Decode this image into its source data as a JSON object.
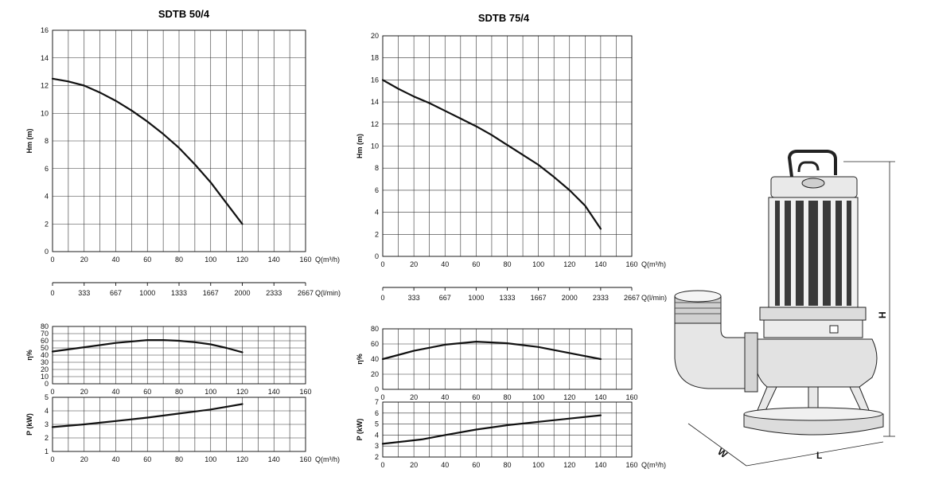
{
  "chart_data": [
    {
      "type": "line",
      "title": "SDTB 50/4",
      "panels": [
        {
          "id": "head",
          "ylabel": "Hm   (m)",
          "xlim": [
            0,
            160
          ],
          "ylim": [
            0,
            16
          ],
          "xticks": [
            0,
            20,
            40,
            60,
            80,
            100,
            120,
            140,
            160
          ],
          "yticks": [
            0,
            2,
            4,
            6,
            8,
            10,
            12,
            14,
            16
          ],
          "xunit": "Q(m³/h)",
          "secondary_xticks": [
            "0",
            "333",
            "667",
            "1000",
            "1333",
            "1667",
            "2000",
            "2333",
            "2667"
          ],
          "secondary_xunit": "Q(l/min)",
          "x": [
            0,
            10,
            20,
            30,
            40,
            50,
            60,
            70,
            80,
            90,
            100,
            110,
            120
          ],
          "y": [
            12.5,
            12.3,
            12.0,
            11.5,
            10.9,
            10.2,
            9.4,
            8.5,
            7.5,
            6.3,
            5.0,
            3.5,
            2.0
          ]
        },
        {
          "id": "efficiency",
          "ylabel": "η%",
          "xlim": [
            0,
            160
          ],
          "ylim": [
            0,
            80
          ],
          "xticks": [
            0,
            20,
            40,
            60,
            80,
            100,
            120,
            140,
            160
          ],
          "yticks": [
            0,
            10,
            20,
            30,
            40,
            50,
            60,
            70,
            80
          ],
          "x": [
            0,
            20,
            40,
            60,
            70,
            80,
            90,
            100,
            110,
            120
          ],
          "y": [
            45,
            51,
            57,
            61,
            61,
            60,
            58,
            55,
            50,
            44
          ]
        },
        {
          "id": "power",
          "ylabel": "P  (kW)",
          "xlim": [
            0,
            160
          ],
          "ylim": [
            1,
            5
          ],
          "xticks": [
            0,
            20,
            40,
            60,
            80,
            100,
            120,
            140,
            160
          ],
          "yticks": [
            1,
            2,
            3,
            4,
            5
          ],
          "xunit": "Q(m³/h)",
          "x": [
            0,
            20,
            40,
            60,
            80,
            100,
            120
          ],
          "y": [
            2.8,
            3.0,
            3.25,
            3.5,
            3.8,
            4.1,
            4.5
          ]
        }
      ]
    },
    {
      "type": "line",
      "title": "SDTB 75/4",
      "panels": [
        {
          "id": "head",
          "ylabel": "Hm   (m)",
          "xlim": [
            0,
            160
          ],
          "ylim": [
            0,
            20
          ],
          "xticks": [
            0,
            20,
            40,
            60,
            80,
            100,
            120,
            140,
            160
          ],
          "yticks": [
            0,
            2,
            4,
            6,
            8,
            10,
            12,
            14,
            16,
            18,
            20
          ],
          "xunit": "Q(m³/h)",
          "secondary_xticks": [
            "0",
            "333",
            "667",
            "1000",
            "1333",
            "1667",
            "2000",
            "2333",
            "2667"
          ],
          "secondary_xunit": "Q(l/min)",
          "x": [
            0,
            10,
            20,
            30,
            40,
            50,
            60,
            70,
            80,
            90,
            100,
            110,
            120,
            130,
            140
          ],
          "y": [
            16.0,
            15.2,
            14.5,
            13.9,
            13.2,
            12.5,
            11.8,
            11.0,
            10.1,
            9.2,
            8.3,
            7.2,
            6.0,
            4.6,
            2.5
          ]
        },
        {
          "id": "efficiency",
          "ylabel": "η%",
          "xlim": [
            0,
            160
          ],
          "ylim": [
            0,
            80
          ],
          "xticks": [
            0,
            20,
            40,
            60,
            80,
            100,
            120,
            140,
            160
          ],
          "yticks": [
            0,
            20,
            40,
            60,
            80
          ],
          "x": [
            0,
            20,
            40,
            60,
            80,
            100,
            120,
            140
          ],
          "y": [
            40,
            51,
            59,
            63,
            61,
            56,
            48,
            40
          ]
        },
        {
          "id": "power",
          "ylabel": "P  (kW)",
          "xlim": [
            0,
            160
          ],
          "ylim": [
            2,
            7
          ],
          "xticks": [
            0,
            20,
            40,
            60,
            80,
            100,
            120,
            140,
            160
          ],
          "yticks": [
            2,
            3,
            4,
            5,
            6,
            7
          ],
          "xunit": "Q(m³/h)",
          "x": [
            0,
            25,
            40,
            60,
            80,
            100,
            120,
            140
          ],
          "y": [
            3.2,
            3.6,
            4.0,
            4.5,
            4.9,
            5.2,
            5.5,
            5.8
          ]
        }
      ]
    }
  ],
  "pump_drawing": {
    "dimension_labels": {
      "height": "H",
      "length": "L",
      "width": "W"
    }
  }
}
